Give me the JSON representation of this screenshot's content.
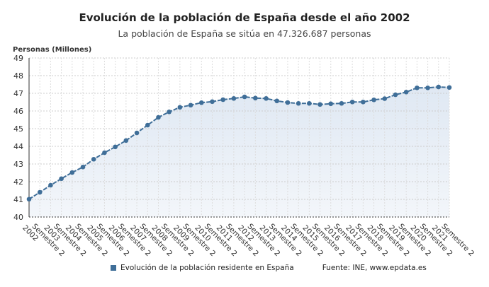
{
  "chart_data": {
    "type": "line",
    "title": "Evolución de la población de España desde el año 2002",
    "subtitle": "La población de España se sitúa en 47.326.687 personas",
    "ylabel": "Personas (Millones)",
    "xlabel": "",
    "ylim": [
      40,
      49
    ],
    "yticks": [
      40,
      41,
      42,
      43,
      44,
      45,
      46,
      47,
      48,
      49
    ],
    "grid": true,
    "tick_labels": [
      "2002 Semestre 2",
      "2003 Semestre 2",
      "2004 Semestre 2",
      "2005 Semestre 2",
      "2006 Semestre 2",
      "2007 Semestre 2",
      "2008 Semestre 2",
      "2009 Semestre 2",
      "2010 Semestre 2",
      "2011 Semestre 2",
      "2012 Semestre 2",
      "2013 Semestre 2",
      "2014 Semestre 2",
      "2015 Semestre 2",
      "2016 Semestre 2",
      "2017 Semestre 2",
      "2018 Semestre 2",
      "2019 Semestre 2",
      "2020 Semestre 2",
      "2021 Semestre 2"
    ],
    "series": [
      {
        "name": "Evolución de la población residente en España",
        "color": "#3f6e98",
        "values": [
          41.01,
          41.4,
          41.8,
          42.17,
          42.52,
          42.83,
          43.27,
          43.64,
          43.97,
          44.33,
          44.76,
          45.2,
          45.64,
          45.95,
          46.21,
          46.33,
          46.47,
          46.53,
          46.64,
          46.71,
          46.8,
          46.73,
          46.71,
          46.57,
          46.48,
          46.43,
          46.43,
          46.37,
          46.41,
          46.43,
          46.51,
          46.51,
          46.63,
          46.7,
          46.92,
          47.07,
          47.31,
          47.31,
          47.36,
          47.33
        ]
      }
    ],
    "legend": "bottom",
    "source": "Fuente: INE, www.epdata.es"
  }
}
